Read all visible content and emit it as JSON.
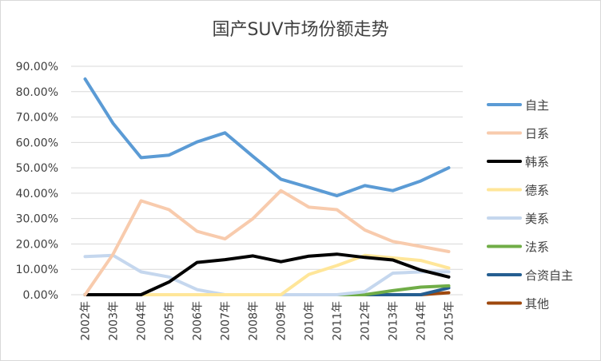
{
  "chart_data": {
    "type": "line",
    "title": "国产SUV市场份额走势",
    "xlabel": "",
    "ylabel": "",
    "categories": [
      "2002年",
      "2003年",
      "2004年",
      "2005年",
      "2006年",
      "2007年",
      "2008年",
      "2009年",
      "2010年",
      "2011年",
      "2012年",
      "2013年",
      "2014年",
      "2015年"
    ],
    "ylim": [
      0,
      0.9
    ],
    "yticks": [
      0,
      0.1,
      0.2,
      0.3,
      0.4,
      0.5,
      0.6,
      0.7,
      0.8,
      0.9
    ],
    "ytick_labels": [
      "0.00%",
      "10.00%",
      "20.00%",
      "30.00%",
      "40.00%",
      "50.00%",
      "60.00%",
      "70.00%",
      "80.00%",
      "90.00%"
    ],
    "grid": true,
    "legend_position": "right",
    "series": [
      {
        "name": "自主",
        "color": "#5b9bd5",
        "values": [
          0.85,
          0.675,
          0.54,
          0.55,
          0.602,
          0.638,
          0.545,
          0.455,
          0.423,
          0.39,
          0.43,
          0.41,
          0.448,
          0.5
        ]
      },
      {
        "name": "日系",
        "color": "#f8cbad",
        "values": [
          0.0,
          0.16,
          0.37,
          0.335,
          0.25,
          0.22,
          0.3,
          0.41,
          0.345,
          0.335,
          0.255,
          0.21,
          0.19,
          0.17
        ]
      },
      {
        "name": "韩系",
        "color": "#000000",
        "values": [
          0.0,
          0.0,
          0.0,
          0.05,
          0.127,
          0.138,
          0.153,
          0.13,
          0.152,
          0.16,
          0.147,
          0.137,
          0.097,
          0.07
        ]
      },
      {
        "name": "德系",
        "color": "#ffe699",
        "values": [
          0.0,
          0.0,
          0.0,
          0.0,
          0.0,
          0.0,
          0.0,
          0.0,
          0.08,
          0.115,
          0.155,
          0.145,
          0.135,
          0.105
        ]
      },
      {
        "name": "美系",
        "color": "#c5d7ee",
        "values": [
          0.15,
          0.155,
          0.09,
          0.07,
          0.02,
          0.0,
          0.0,
          0.0,
          0.0,
          0.0,
          0.012,
          0.085,
          0.09,
          0.09
        ]
      },
      {
        "name": "法系",
        "color": "#70ad47",
        "values": [
          0.0,
          0.0,
          0.0,
          0.0,
          0.0,
          0.0,
          0.0,
          0.0,
          0.0,
          0.0,
          0.0,
          0.016,
          0.03,
          0.035
        ]
      },
      {
        "name": "合资自主",
        "color": "#255e91",
        "values": [
          0.0,
          0.0,
          0.0,
          0.0,
          0.0,
          0.0,
          0.0,
          0.0,
          0.0,
          0.0,
          0.0,
          0.0,
          0.0,
          0.027
        ]
      },
      {
        "name": "其他",
        "color": "#9e480e",
        "values": [
          0.0,
          0.0,
          0.0,
          0.0,
          0.0,
          0.0,
          0.0,
          0.0,
          0.0,
          0.0,
          0.0,
          0.0,
          0.0,
          0.008
        ]
      }
    ]
  }
}
